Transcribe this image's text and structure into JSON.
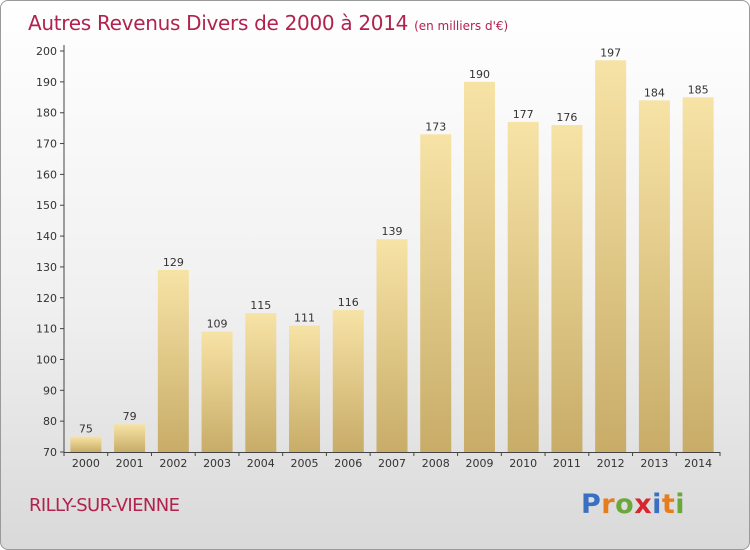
{
  "title": "Autres Revenus Divers de 2000 à 2014",
  "unit": "(en milliers d'€)",
  "commune": "RILLY-SUR-VIENNE",
  "logo": {
    "letters": [
      "P",
      "r",
      "o",
      "x",
      "i",
      "t",
      "i"
    ],
    "colors": [
      "#3b6fc1",
      "#e77c1c",
      "#6aa83a",
      "#d6262e",
      "#3b6fc1",
      "#e77c1c",
      "#6aa83a"
    ]
  },
  "colors": {
    "title": "#b1224f",
    "bar_light": "#f7e3a6",
    "bar_dark": "#c8ac68"
  },
  "chart_data": {
    "type": "bar",
    "title": "Autres Revenus Divers de 2000 à 2014",
    "xlabel": "",
    "ylabel": "",
    "categories": [
      "2000",
      "2001",
      "2002",
      "2003",
      "2004",
      "2005",
      "2006",
      "2007",
      "2008",
      "2009",
      "2010",
      "2011",
      "2012",
      "2013",
      "2014"
    ],
    "values": [
      75,
      79,
      129,
      109,
      115,
      111,
      116,
      139,
      173,
      190,
      177,
      176,
      197,
      184,
      185
    ],
    "ylim": [
      70,
      200
    ],
    "yticks": [
      70,
      80,
      90,
      100,
      110,
      120,
      130,
      140,
      150,
      160,
      170,
      180,
      190,
      200
    ],
    "grid": false,
    "legend": "none"
  }
}
